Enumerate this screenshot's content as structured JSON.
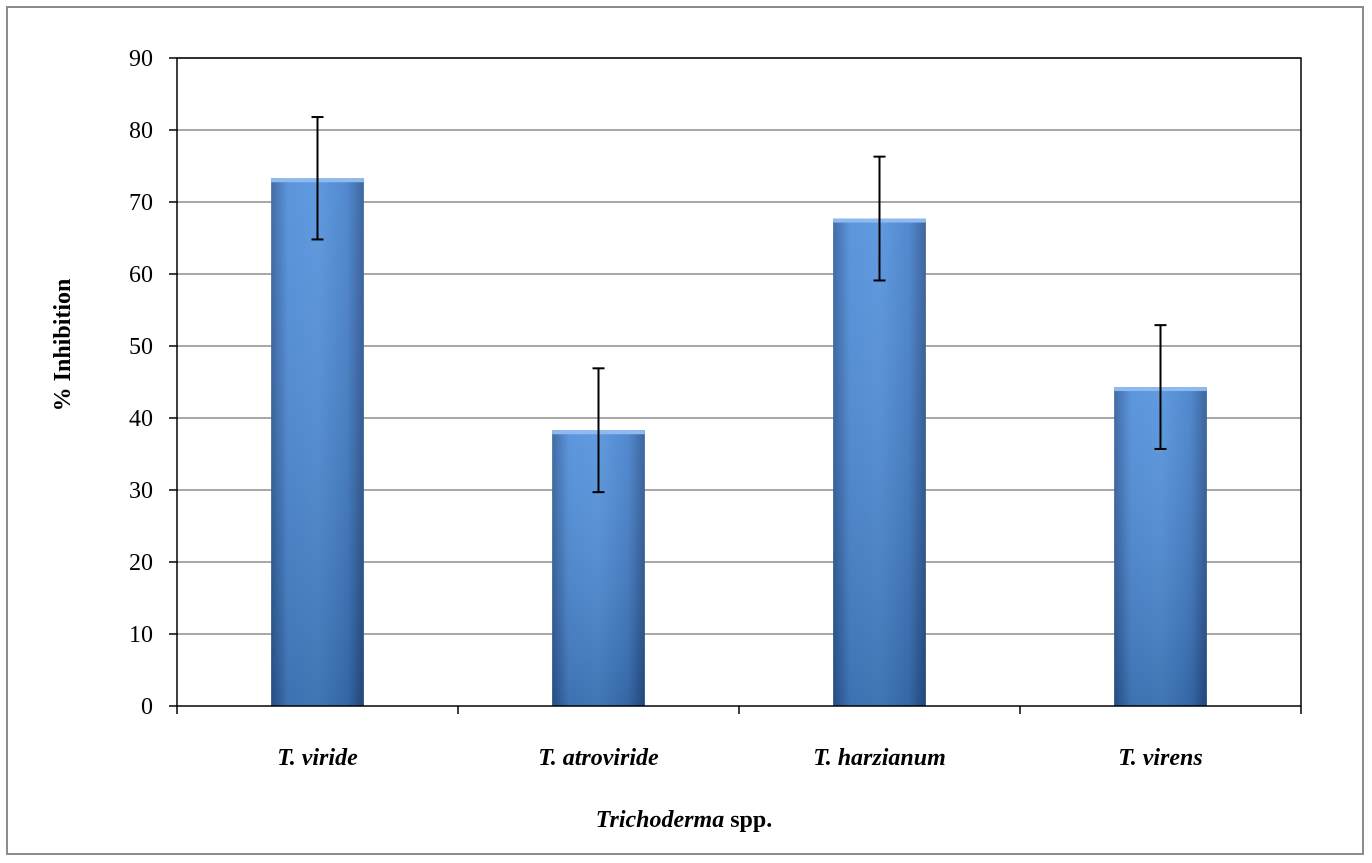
{
  "chart_data": {
    "type": "bar",
    "categories": [
      "T. viride",
      "T. atroviride",
      "T. harzianum",
      "T. virens"
    ],
    "values": [
      73.3,
      38.3,
      67.7,
      44.3
    ],
    "error": [
      8.5,
      8.6,
      8.6,
      8.6
    ],
    "ylabel": "% Inhibition",
    "xlabel_italic": "Trichoderma",
    "xlabel_rest": " spp.",
    "ylim": [
      0,
      90
    ],
    "yticks": [
      0,
      10,
      20,
      30,
      40,
      50,
      60,
      70,
      80,
      90
    ],
    "grid": true,
    "colors": {
      "bar_light": "#6ea3e8",
      "bar_mid": "#3f7fcf",
      "bar_dark": "#2c5a99",
      "grid": "#8c8c8c",
      "frame": "#8c8c8c"
    }
  }
}
